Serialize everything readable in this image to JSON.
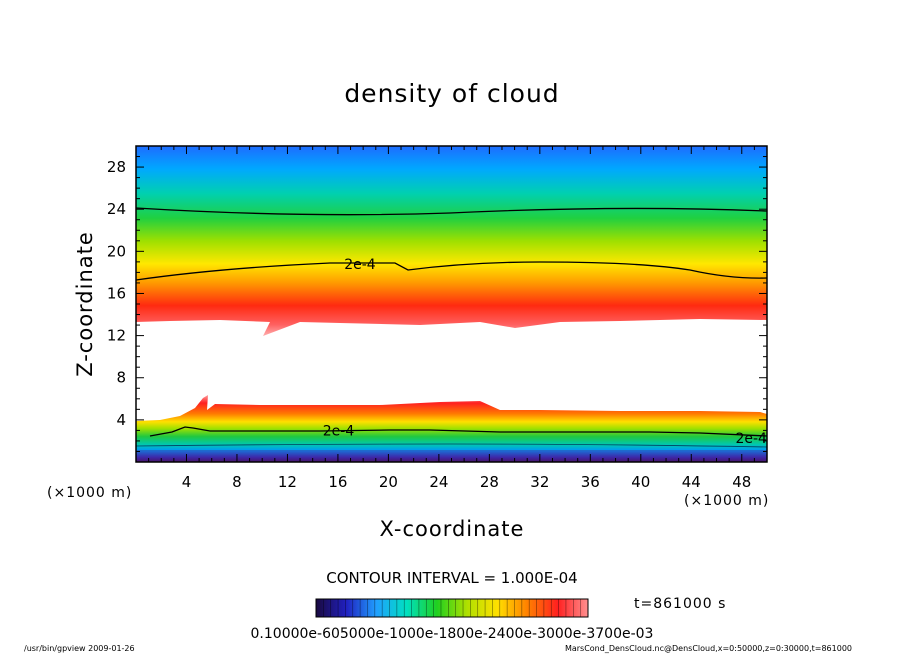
{
  "chart_data": {
    "type": "heatmap",
    "title": "density of cloud",
    "xlabel": "X-coordinate",
    "ylabel": "Z-coordinate",
    "x_unit": "(×1000 m)",
    "x_ticks": [
      4,
      8,
      12,
      16,
      20,
      24,
      28,
      32,
      36,
      40,
      44,
      48
    ],
    "y_ticks": [
      4,
      8,
      12,
      16,
      20,
      24,
      28
    ],
    "xlim": [
      0,
      50
    ],
    "ylim": [
      0,
      30
    ],
    "contour_labels": [
      {
        "text": "2e-4",
        "x": 16.5,
        "z": 18.8
      },
      {
        "text": "2e-4",
        "x": 14.8,
        "z": 3.0
      },
      {
        "text": "2e-4",
        "x": 47.5,
        "z": 2.3
      }
    ],
    "contour_interval": "CONTOUR INTERVAL = 1.000E-04",
    "time_label": "t=861000 s",
    "colorbar_labels": "0.10000e-605000e-1000e-1800e-2400e-3000e-3700e-03",
    "colorbar_stops": [
      "#1a0a40",
      "#2020c0",
      "#20a0ff",
      "#00e0c0",
      "#20d020",
      "#b0e000",
      "#ffe000",
      "#ff8000",
      "#ff2020",
      "#ff9090"
    ],
    "footer_left": "/usr/bin/gpview   2009-01-26",
    "footer_right": "MarsCond_DensCloud.nc@DensCloud,x=0:50000,z=0:30000,t=861000"
  }
}
